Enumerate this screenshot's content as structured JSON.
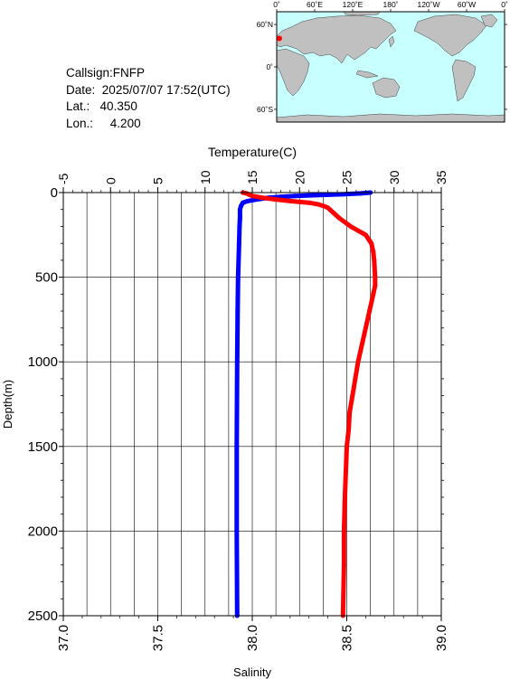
{
  "station": {
    "callsign_label": "Callsign:",
    "callsign": "FNFP",
    "date_label": "Date:",
    "date": "2025/07/07 17:52(UTC)",
    "lat_label": "Lat.:",
    "lat": "40.350",
    "lon_label": "Lon.:",
    "lon": "4.200"
  },
  "map": {
    "lon_ticks": [
      "0˚",
      "60˚E",
      "120˚E",
      "180˚",
      "120˚W",
      "60˚W",
      "0˚"
    ],
    "lat_ticks": [
      "60˚N",
      "0˚",
      "60˚S"
    ],
    "ocean_color": "#c8ffff",
    "land_color": "#c0c0c0",
    "marker_color": "#ff0000",
    "marker_lon": 4.2,
    "marker_lat": 40.35
  },
  "chart_data": {
    "type": "line",
    "title": "",
    "ylabel": "Depth(m)",
    "ylim": [
      2500,
      0
    ],
    "yticks": [
      "0",
      "500",
      "1000",
      "1500",
      "2000",
      "2500"
    ],
    "top_axis": {
      "label": "Temperature(C)",
      "lim": [
        -5,
        35
      ],
      "ticks": [
        "-5",
        "0",
        "5",
        "10",
        "15",
        "20",
        "25",
        "30",
        "35"
      ]
    },
    "bottom_axis": {
      "label": "Salinity",
      "lim": [
        37.0,
        39.0
      ],
      "ticks": [
        "37.0",
        "37.5",
        "38.0",
        "38.5",
        "39.0"
      ]
    },
    "grid": true,
    "series": [
      {
        "axis": "top",
        "color": "#0000ff",
        "depth": [
          0,
          5,
          10,
          15,
          20,
          25,
          30,
          40,
          50,
          60,
          80,
          100,
          150,
          200,
          300,
          500,
          700,
          1000,
          1500,
          2000,
          2500
        ],
        "values": [
          27.5,
          26.5,
          24.5,
          22.0,
          19.5,
          18.0,
          16.8,
          15.5,
          14.5,
          14.0,
          13.8,
          13.7,
          13.7,
          13.65,
          13.6,
          13.5,
          13.45,
          13.4,
          13.35,
          13.35,
          13.4
        ]
      },
      {
        "axis": "bottom",
        "color": "#ff0000",
        "depth": [
          0,
          5,
          10,
          20,
          30,
          40,
          50,
          60,
          70,
          80,
          90,
          100,
          120,
          150,
          200,
          250,
          300,
          350,
          400,
          500,
          550,
          600,
          700,
          800,
          900,
          1000,
          1100,
          1200,
          1300,
          1400,
          1500,
          1800,
          2000,
          2200,
          2500
        ],
        "values": [
          37.95,
          37.97,
          37.98,
          38.0,
          38.05,
          38.12,
          38.2,
          38.3,
          38.35,
          38.38,
          38.4,
          38.41,
          38.43,
          38.46,
          38.52,
          38.6,
          38.63,
          38.64,
          38.645,
          38.65,
          38.65,
          38.64,
          38.62,
          38.6,
          38.58,
          38.56,
          38.545,
          38.53,
          38.515,
          38.51,
          38.5,
          38.49,
          38.485,
          38.485,
          38.48
        ]
      }
    ]
  }
}
